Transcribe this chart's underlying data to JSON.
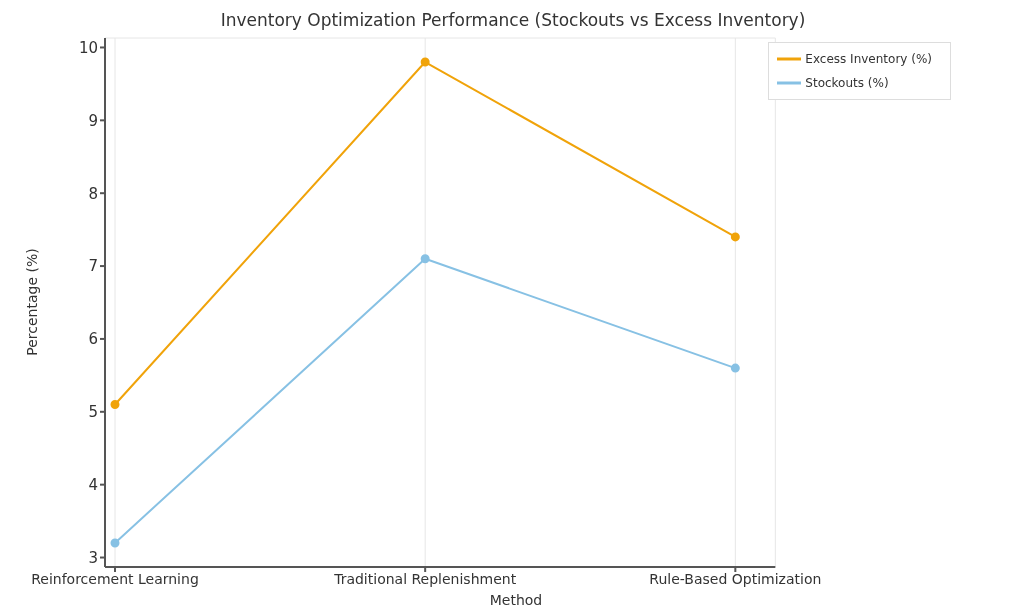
{
  "chart_data": {
    "type": "line",
    "title": "Inventory Optimization Performance (Stockouts vs Excess Inventory)",
    "xlabel": "Method",
    "ylabel": "Percentage (%)",
    "categories": [
      "Reinforcement Learning",
      "Traditional Replenishment",
      "Rule-Based Optimization"
    ],
    "series": [
      {
        "name": "Stockouts (%)",
        "color": "#87c1e4",
        "values": [
          3.2,
          7.1,
          5.6
        ]
      },
      {
        "name": "Excess Inventory (%)",
        "color": "#f0a30a",
        "values": [
          5.1,
          9.8,
          7.4
        ]
      }
    ],
    "ylim": [
      2.87,
      10.13
    ],
    "yticks": [
      3,
      4,
      5,
      6,
      7,
      8,
      9,
      10
    ],
    "grid": true,
    "legend": "top right",
    "marker": "circle",
    "line_style": "solid"
  }
}
